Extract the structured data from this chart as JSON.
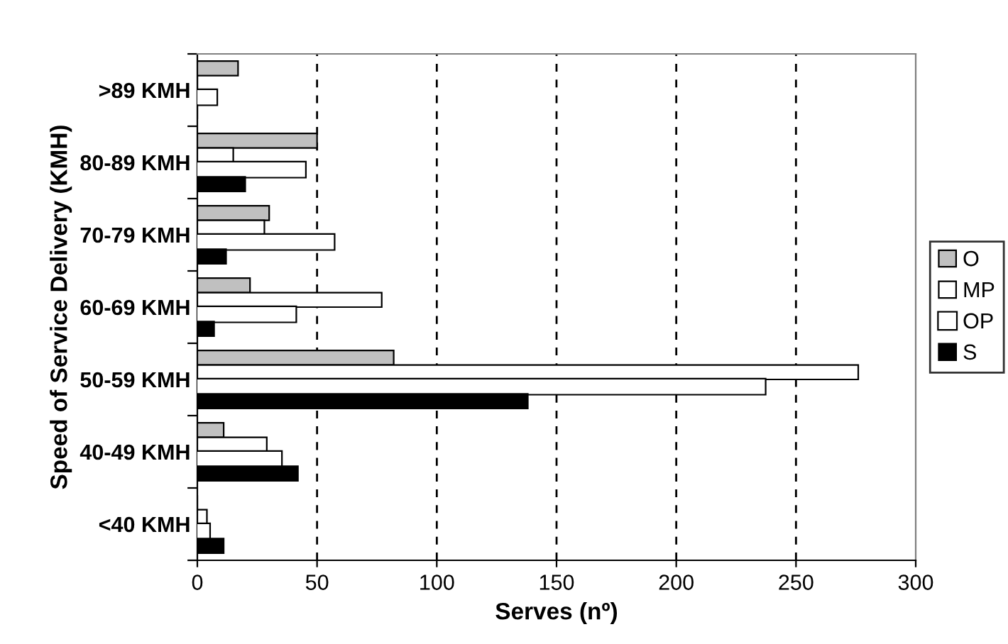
{
  "chart_data": {
    "type": "bar",
    "orientation": "horizontal",
    "xlabel": "Serves (nº)",
    "ylabel": "Speed of Service Delivery (KMH)",
    "categories": [
      ">89 KMH",
      "80-89 KMH",
      "70-79 KMH",
      "60-69 KMH",
      "50-59 KMH",
      "40-49 KMH",
      "<40 KMH"
    ],
    "series": [
      {
        "name": "O",
        "color": "#c0c0c0",
        "values": [
          17,
          50,
          30,
          22,
          82,
          11,
          0
        ]
      },
      {
        "name": "MP",
        "color": "#ffffff",
        "values": [
          0,
          15,
          28,
          77,
          276,
          29,
          4
        ]
      },
      {
        "name": "OP",
        "color": "#ffffff",
        "values": [
          8,
          45,
          57,
          41,
          237,
          35,
          5
        ]
      },
      {
        "name": "S",
        "color": "#000000",
        "values": [
          0,
          20,
          12,
          7,
          138,
          42,
          11
        ]
      }
    ],
    "xlim": [
      0,
      300
    ],
    "xticks": [
      0,
      50,
      100,
      150,
      200,
      250,
      300
    ],
    "grid": "x",
    "legend": "right"
  }
}
